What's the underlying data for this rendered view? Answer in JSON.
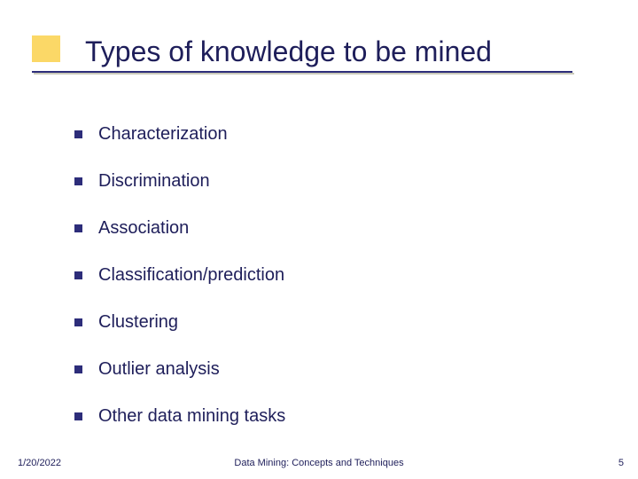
{
  "slide": {
    "title": "Types of knowledge to be mined",
    "accent_color": "#fbd867",
    "underline_color": "#2d2d7a",
    "text_color": "#1e1e5a",
    "bullet_color": "#2d2d7a",
    "background_color": "#ffffff",
    "title_fontsize": 32,
    "item_fontsize": 20,
    "footer_fontsize": 11
  },
  "items": [
    "Characterization",
    "Discrimination",
    "Association",
    "Classification/prediction",
    "Clustering",
    "Outlier analysis",
    "Other data mining tasks"
  ],
  "footer": {
    "date": "1/20/2022",
    "title": "Data Mining: Concepts and Techniques",
    "page": "5"
  }
}
